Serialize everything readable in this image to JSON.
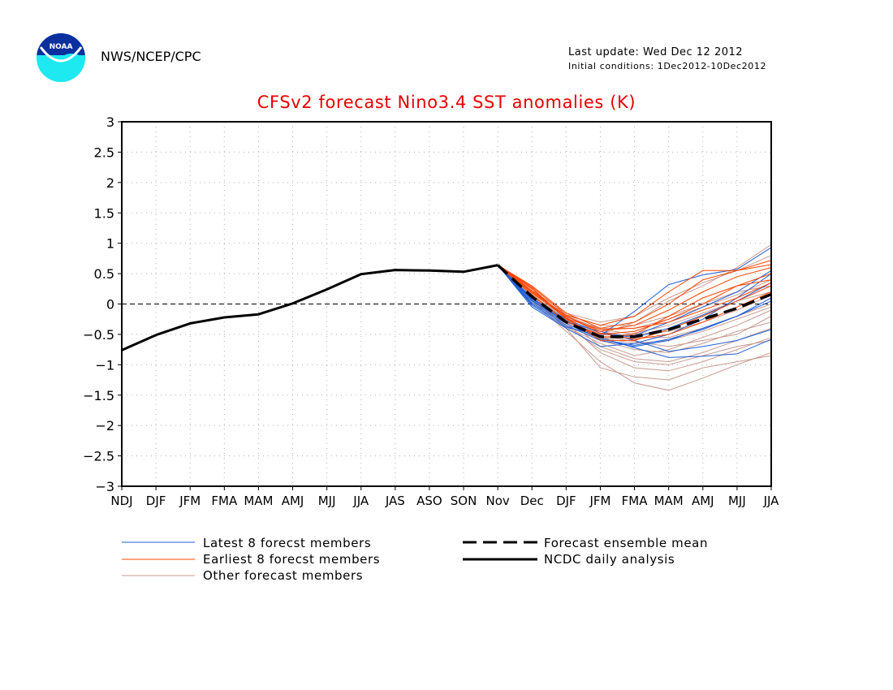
{
  "header": {
    "org": "NWS/NCEP/CPC",
    "logo_text": "NOAA",
    "last_update": "Last update: Wed Dec 12 2012",
    "initial_conditions": "Initial conditions: 1Dec2012-10Dec2012"
  },
  "colors": {
    "title": "#e60000",
    "latest": "#1f5fd6",
    "earliest": "#ff4500",
    "other": "#c89a90",
    "analysis": "#000000",
    "mean": "#000000"
  },
  "legend": {
    "latest": "Latest 8 forecst members",
    "earliest": "Earliest 8 forecst members",
    "other": "Other forecast members",
    "mean": "Forecast ensemble mean",
    "analysis": "NCDC daily analysis"
  },
  "chart_data": {
    "type": "line",
    "title": "CFSv2 forecast Nino3.4 SST anomalies (K)",
    "categories": [
      "NDJ",
      "DJF",
      "JFM",
      "FMA",
      "MAM",
      "AMJ",
      "MJJ",
      "JJA",
      "JAS",
      "ASO",
      "SON",
      "Nov",
      "Dec",
      "DJF",
      "JFM",
      "FMA",
      "MAM",
      "AMJ",
      "MJJ",
      "JJA"
    ],
    "ylim": [
      -3,
      3
    ],
    "yticks": [
      "3",
      "2.5",
      "2",
      "1.5",
      "1",
      "0.5",
      "0",
      "-0.5",
      "-1",
      "-1.5",
      "-2",
      "-2.5",
      "-3"
    ],
    "grid": true,
    "zero_line": true,
    "legend_position": "bottom",
    "series": [
      {
        "name": "NCDC daily analysis",
        "style": "solid",
        "values": [
          -0.76,
          -0.51,
          -0.32,
          -0.22,
          -0.17,
          0.01,
          0.24,
          0.49,
          0.56,
          0.55,
          0.53,
          0.64,
          null,
          null,
          null,
          null,
          null,
          null,
          null,
          null
        ]
      },
      {
        "name": "Forecast ensemble mean",
        "style": "dashed",
        "values": [
          null,
          null,
          null,
          null,
          null,
          null,
          null,
          null,
          null,
          null,
          null,
          0.64,
          0.12,
          -0.3,
          -0.54,
          -0.54,
          -0.42,
          -0.25,
          -0.07,
          0.16
        ]
      },
      {
        "name": "Latest 8 forecst members",
        "group": "latest",
        "lines": [
          [
            0.64,
            -0.02,
            -0.38,
            -0.52,
            -0.12,
            0.32,
            0.48,
            0.57,
            0.93
          ],
          [
            0.64,
            0.05,
            -0.3,
            -0.45,
            -0.6,
            -0.78,
            -0.7,
            -0.6,
            -0.42
          ],
          [
            0.64,
            0.1,
            -0.28,
            -0.55,
            -0.72,
            -0.88,
            -0.86,
            -0.82,
            -0.58
          ],
          [
            0.64,
            0.0,
            -0.35,
            -0.6,
            -0.7,
            -0.6,
            -0.4,
            -0.2,
            0.1
          ],
          [
            0.64,
            0.08,
            -0.25,
            -0.48,
            -0.55,
            -0.4,
            -0.18,
            0.05,
            0.35
          ],
          [
            0.64,
            -0.05,
            -0.4,
            -0.7,
            -0.65,
            -0.5,
            -0.25,
            0.1,
            0.5
          ],
          [
            0.64,
            0.02,
            -0.32,
            -0.58,
            -0.68,
            -0.58,
            -0.42,
            -0.2,
            0.05
          ],
          [
            0.64,
            0.06,
            -0.29,
            -0.5,
            -0.52,
            -0.3,
            -0.05,
            0.2,
            0.55
          ]
        ]
      },
      {
        "name": "Earliest 8 forecst members",
        "group": "earliest",
        "lines": [
          [
            0.64,
            0.3,
            -0.15,
            -0.4,
            -0.3,
            0.0,
            0.4,
            0.55,
            0.72
          ],
          [
            0.64,
            0.2,
            -0.2,
            -0.45,
            -0.35,
            -0.1,
            0.2,
            0.45,
            0.6
          ],
          [
            0.64,
            0.25,
            -0.25,
            -0.55,
            -0.5,
            -0.2,
            0.1,
            0.3,
            0.5
          ],
          [
            0.64,
            0.18,
            -0.22,
            -0.6,
            -0.6,
            -0.42,
            -0.2,
            0.05,
            0.3
          ],
          [
            0.64,
            0.28,
            -0.18,
            -0.35,
            -0.2,
            0.2,
            0.55,
            0.55,
            0.65
          ],
          [
            0.64,
            0.15,
            -0.3,
            -0.5,
            -0.45,
            -0.25,
            0.0,
            0.3,
            0.4
          ],
          [
            0.64,
            0.22,
            -0.2,
            -0.48,
            -0.58,
            -0.5,
            -0.3,
            -0.05,
            0.2
          ],
          [
            0.64,
            0.26,
            -0.24,
            -0.42,
            -0.4,
            -0.3,
            -0.1,
            0.1,
            0.35
          ]
        ]
      },
      {
        "name": "Other forecast members",
        "group": "other",
        "lines": [
          [
            0.64,
            0.1,
            -0.4,
            -1.05,
            -1.2,
            -1.25,
            -1.05,
            -0.95,
            -0.85
          ],
          [
            0.64,
            0.05,
            -0.45,
            -0.95,
            -1.3,
            -1.42,
            -1.22,
            -1.0,
            -0.8
          ],
          [
            0.64,
            0.12,
            -0.3,
            -0.8,
            -1.05,
            -1.1,
            -0.95,
            -0.75,
            -0.55
          ],
          [
            0.64,
            0.15,
            -0.25,
            -0.7,
            -0.9,
            -0.95,
            -0.8,
            -0.6,
            -0.4
          ],
          [
            0.64,
            0.08,
            -0.35,
            -0.6,
            -0.75,
            -0.8,
            -0.65,
            -0.45,
            -0.3
          ],
          [
            0.64,
            0.18,
            -0.2,
            -0.45,
            -0.55,
            -0.55,
            -0.4,
            -0.2,
            0.0
          ],
          [
            0.64,
            0.2,
            -0.18,
            -0.35,
            -0.35,
            -0.2,
            0.0,
            0.2,
            0.3
          ],
          [
            0.64,
            0.1,
            -0.28,
            -0.5,
            -0.3,
            0.05,
            0.3,
            0.6,
            0.98
          ],
          [
            0.64,
            0.22,
            -0.15,
            -0.3,
            -0.2,
            0.1,
            0.35,
            0.55,
            0.8
          ],
          [
            0.64,
            0.14,
            -0.22,
            -0.4,
            -0.4,
            -0.25,
            -0.05,
            0.15,
            0.4
          ],
          [
            0.64,
            0.06,
            -0.38,
            -0.65,
            -0.85,
            -0.75,
            -0.55,
            -0.35,
            -0.1
          ],
          [
            0.64,
            0.16,
            -0.26,
            -0.55,
            -0.65,
            -0.6,
            -0.45,
            -0.25,
            -0.05
          ],
          [
            0.64,
            0.11,
            -0.32,
            -0.58,
            -0.48,
            -0.35,
            -0.15,
            0.05,
            0.2
          ],
          [
            0.64,
            0.19,
            -0.19,
            -0.42,
            -0.5,
            -0.45,
            -0.3,
            -0.1,
            0.15
          ],
          [
            0.64,
            0.09,
            -0.36,
            -0.75,
            -0.95,
            -1.0,
            -0.85,
            -0.7,
            -0.6
          ],
          [
            0.64,
            0.13,
            -0.27,
            -0.52,
            -0.62,
            -0.7,
            -0.6,
            -0.5,
            -0.2
          ]
        ]
      }
    ]
  }
}
